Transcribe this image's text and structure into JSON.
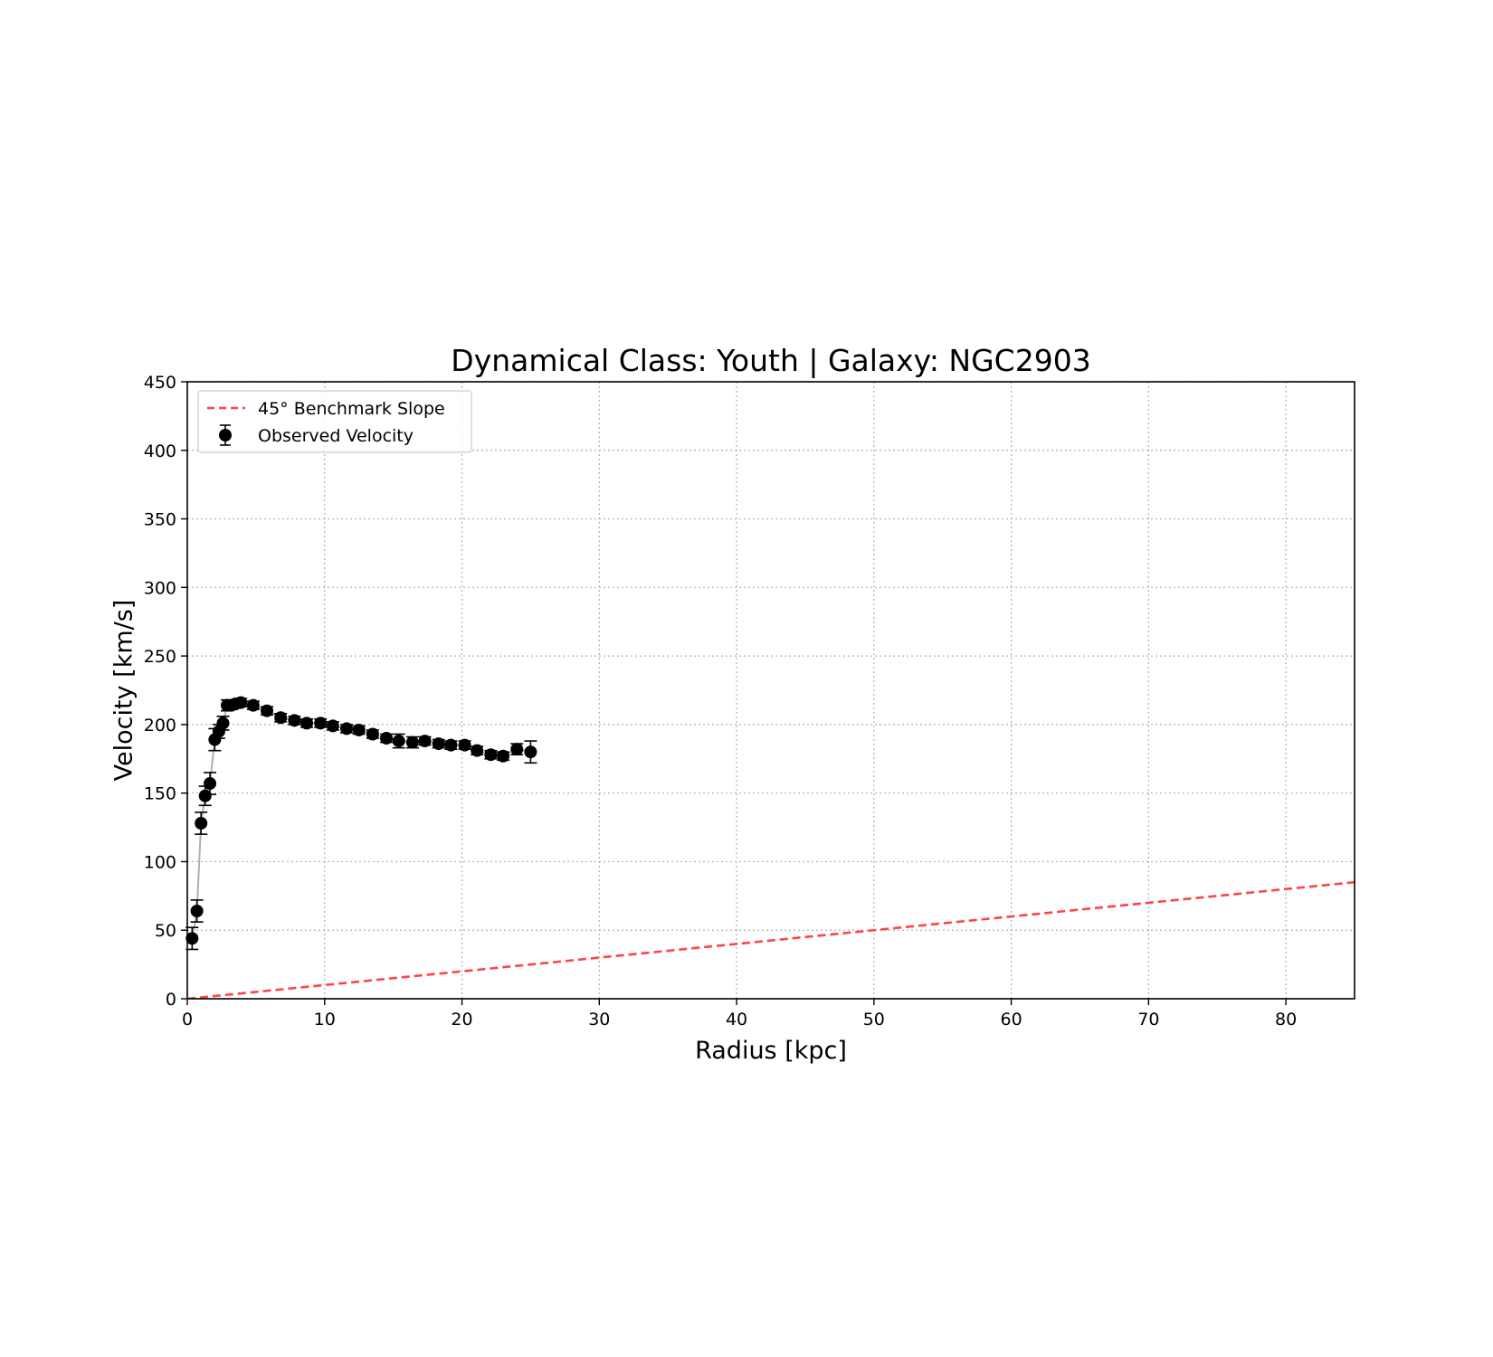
{
  "chart_data": {
    "type": "scatter",
    "title": "Dynamical Class: Youth | Galaxy: NGC2903",
    "xlabel": "Radius [kpc]",
    "ylabel": "Velocity [km/s]",
    "xlim": [
      0,
      85
    ],
    "ylim": [
      0,
      450
    ],
    "xticks": [
      0,
      10,
      20,
      30,
      40,
      50,
      60,
      70,
      80
    ],
    "yticks": [
      0,
      50,
      100,
      150,
      200,
      250,
      300,
      350,
      400,
      450
    ],
    "grid": true,
    "legend_position": "upper-left",
    "series": [
      {
        "name": "Observed Velocity",
        "kind": "errorbar",
        "color": "#000000",
        "line_color": "#b0b0b0",
        "x": [
          0.35,
          0.7,
          1.0,
          1.3,
          1.65,
          2.0,
          2.3,
          2.6,
          2.9,
          3.2,
          3.5,
          3.9,
          4.8,
          5.8,
          6.8,
          7.8,
          8.7,
          9.7,
          10.6,
          11.6,
          12.5,
          13.5,
          14.5,
          15.4,
          16.4,
          17.3,
          18.3,
          19.2,
          20.2,
          21.1,
          22.1,
          23.0,
          24.0,
          25.0
        ],
        "y": [
          44,
          64,
          128,
          148,
          157,
          189,
          195,
          201,
          214,
          214,
          215,
          216,
          214,
          210,
          205,
          203,
          201,
          201,
          199,
          197,
          196,
          193,
          190,
          188,
          187,
          188,
          186,
          185,
          185,
          181,
          178,
          177,
          182,
          180
        ],
        "yerr": [
          8,
          8,
          8,
          7,
          8,
          8,
          5,
          5,
          4,
          3,
          3,
          3,
          3,
          3,
          3,
          3,
          3,
          3,
          3,
          3,
          3,
          3,
          3,
          5,
          4,
          3,
          3,
          3,
          3,
          3,
          3,
          3,
          4,
          8
        ]
      },
      {
        "name": "45° Benchmark Slope",
        "kind": "dashed-line",
        "color": "#ff4444",
        "x": [
          0,
          85
        ],
        "y": [
          0,
          85
        ]
      }
    ]
  }
}
